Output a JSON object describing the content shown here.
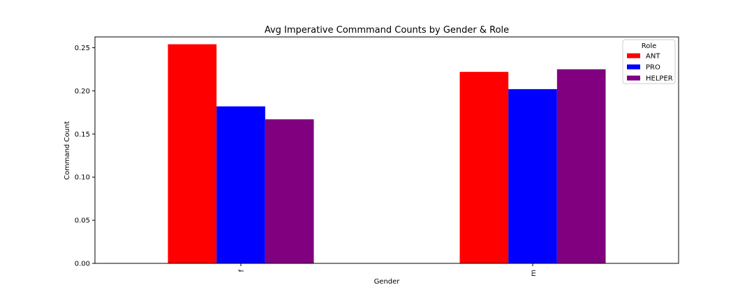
{
  "chart_data": {
    "type": "bar",
    "title": "Avg Imperative Commmand Counts by Gender & Role",
    "xlabel": "Gender",
    "ylabel": "Command Count",
    "categories": [
      "f",
      "m"
    ],
    "series": [
      {
        "name": "ANT",
        "values": [
          0.254,
          0.222
        ],
        "color": "#ff0000"
      },
      {
        "name": "PRO",
        "values": [
          0.182,
          0.202
        ],
        "color": "#0000ff"
      },
      {
        "name": "HELPER",
        "values": [
          0.167,
          0.225
        ],
        "color": "#800080"
      }
    ],
    "ylim": [
      0,
      0.2625
    ],
    "yticks": [
      "0.00",
      "0.05",
      "0.10",
      "0.15",
      "0.20",
      "0.25"
    ],
    "grid": false,
    "legend": {
      "title": "Role",
      "placement": "upper right"
    }
  }
}
